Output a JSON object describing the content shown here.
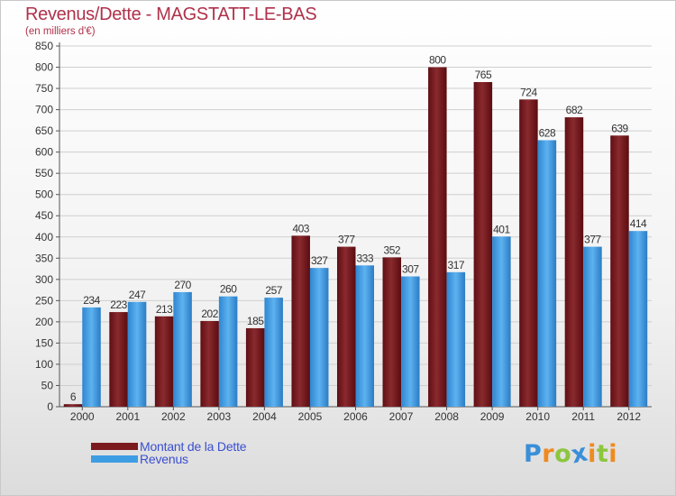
{
  "header": {
    "title": "Revenus/Dette - MAGSTATT-LE-BAS",
    "subtitle": "(en milliers d'€)"
  },
  "legend": {
    "items": [
      {
        "label": "Montant de la Dette",
        "color": "#7a1a1e"
      },
      {
        "label": "Revenus",
        "color": "#3d9de4"
      }
    ]
  },
  "logo": {
    "text": "Proxiti",
    "letters": [
      {
        "ch": "P",
        "color": "#3a8fd8"
      },
      {
        "ch": "r",
        "color": "#ef8a1e"
      },
      {
        "ch": "o",
        "color": "#8cc63e"
      },
      {
        "ch": "x",
        "color": "#3a8fd8"
      },
      {
        "ch": "i",
        "color": "#ef8a1e"
      },
      {
        "ch": "t",
        "color": "#8cc63e"
      },
      {
        "ch": "i",
        "color": "#ef8a1e"
      }
    ]
  },
  "chart_data": {
    "type": "bar",
    "title": "Revenus/Dette - MAGSTATT-LE-BAS",
    "subtitle": "(en milliers d'€)",
    "xlabel": "",
    "ylabel": "",
    "ylim": [
      0,
      850
    ],
    "ytick_step": 50,
    "grid": true,
    "categories": [
      "2000",
      "2001",
      "2002",
      "2003",
      "2004",
      "2005",
      "2006",
      "2007",
      "2008",
      "2009",
      "2010",
      "2011",
      "2012"
    ],
    "series": [
      {
        "name": "Montant de la Dette",
        "color": "#7a1a1e",
        "values": [
          6,
          223,
          213,
          202,
          185,
          403,
          377,
          352,
          800,
          765,
          724,
          682,
          639
        ]
      },
      {
        "name": "Revenus",
        "color": "#3d9de4",
        "values": [
          234,
          247,
          270,
          260,
          257,
          327,
          333,
          307,
          317,
          401,
          628,
          377,
          414
        ]
      }
    ]
  }
}
